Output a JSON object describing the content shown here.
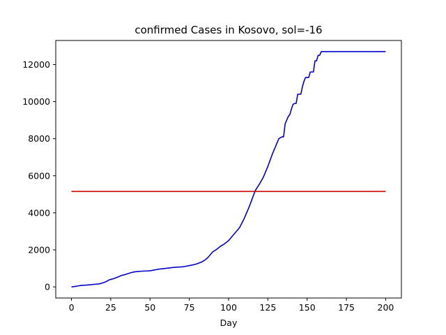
{
  "chart_data": {
    "type": "line",
    "title": "confirmed Cases in Kosovo, sol=-16",
    "xlabel": "Day",
    "ylabel": "",
    "xlim": [
      -10,
      210
    ],
    "ylim": [
      -600,
      13300
    ],
    "xticks": [
      0,
      25,
      50,
      75,
      100,
      125,
      150,
      175,
      200
    ],
    "yticks": [
      0,
      2000,
      4000,
      6000,
      8000,
      10000,
      12000
    ],
    "grid": false,
    "legend": "none",
    "series": [
      {
        "color": "#0000cc",
        "x": [
          0,
          2,
          4,
          6,
          8,
          10,
          12,
          15,
          18,
          20,
          22,
          24,
          25,
          27,
          30,
          32,
          34,
          36,
          38,
          40,
          42,
          45,
          48,
          50,
          52,
          55,
          58,
          60,
          63,
          65,
          68,
          70,
          72,
          75,
          78,
          80,
          83,
          85,
          87,
          89,
          90,
          92,
          95,
          97,
          100,
          102,
          104,
          107,
          110,
          113,
          117,
          120,
          122,
          123,
          125,
          128,
          130,
          132,
          134,
          135,
          136,
          137,
          138,
          139,
          140,
          141,
          142,
          143,
          144,
          145,
          146,
          147,
          148,
          149,
          150,
          151,
          152,
          153,
          154,
          155,
          156,
          157,
          158,
          159,
          160,
          165,
          170,
          180,
          190,
          200
        ],
        "y": [
          0,
          20,
          50,
          80,
          90,
          100,
          120,
          140,
          170,
          220,
          280,
          380,
          400,
          450,
          550,
          620,
          660,
          720,
          770,
          810,
          830,
          850,
          860,
          870,
          900,
          950,
          980,
          1000,
          1030,
          1050,
          1070,
          1080,
          1100,
          1150,
          1200,
          1250,
          1350,
          1450,
          1600,
          1800,
          1900,
          2000,
          2200,
          2300,
          2500,
          2700,
          2900,
          3200,
          3700,
          4300,
          5200,
          5600,
          5900,
          6100,
          6500,
          7200,
          7600,
          8000,
          8100,
          8100,
          8800,
          9000,
          9200,
          9300,
          9600,
          9850,
          9900,
          9900,
          10400,
          10400,
          10400,
          10800,
          11100,
          11300,
          11300,
          11300,
          11600,
          11600,
          11600,
          12200,
          12200,
          12500,
          12500,
          12700,
          12700,
          12700,
          12700,
          12700,
          12700,
          12700
        ]
      },
      {
        "color": "#cc0000",
        "x": [
          0,
          200
        ],
        "y": [
          5150,
          5150
        ]
      }
    ]
  }
}
